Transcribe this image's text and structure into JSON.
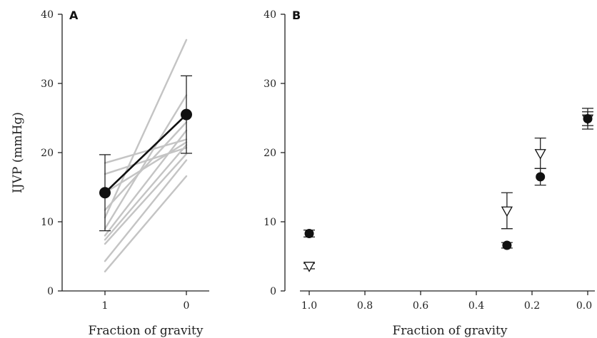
{
  "chart_data": [
    {
      "type": "line",
      "panel_label": "A",
      "xlabel": "Fraction of gravity",
      "ylabel": "IJVP (mmHg)",
      "x_categories": [
        "1",
        "0"
      ],
      "ylim": [
        0,
        40
      ],
      "y_ticks": [
        0,
        10,
        20,
        30,
        40
      ],
      "grid": false,
      "individual_series": [
        {
          "values": [
            2.8,
            16.6
          ]
        },
        {
          "values": [
            4.3,
            18.9
          ]
        },
        {
          "values": [
            6.8,
            19.8
          ]
        },
        {
          "values": [
            7.4,
            21.1
          ]
        },
        {
          "values": [
            8.0,
            23.2
          ]
        },
        {
          "values": [
            9.0,
            28.3
          ]
        },
        {
          "values": [
            10.6,
            36.3
          ]
        },
        {
          "values": [
            11.7,
            24.4
          ]
        },
        {
          "values": [
            14.2,
            21.5
          ]
        },
        {
          "values": [
            16.9,
            20.7
          ]
        },
        {
          "values": [
            18.5,
            21.9
          ]
        }
      ],
      "mean_series": {
        "values": [
          14.2,
          25.5
        ],
        "error": [
          5.5,
          5.6
        ]
      },
      "colors": {
        "individual": "#c4c4c4",
        "mean": "#111111"
      }
    },
    {
      "type": "scatter",
      "panel_label": "B",
      "xlabel": "Fraction of gravity",
      "ylabel": "",
      "xlim": [
        1.0,
        0.0
      ],
      "x_reversed": true,
      "x_ticks": [
        1.0,
        0.8,
        0.6,
        0.4,
        0.2,
        0.0
      ],
      "x_tick_labels": [
        "1.0",
        "0.8",
        "0.6",
        "0.4",
        "0.2",
        "0.0"
      ],
      "ylim": [
        0,
        40
      ],
      "y_ticks": [
        0,
        10,
        20,
        30,
        40
      ],
      "grid": false,
      "series": [
        {
          "marker": "filled-circle",
          "points": [
            {
              "x": 1.0,
              "y": 8.3,
              "err": 0.5
            },
            {
              "x": 0.29,
              "y": 6.6,
              "err": 0.4
            },
            {
              "x": 0.17,
              "y": 16.5,
              "err": 1.2
            },
            {
              "x": 0.0,
              "y": 24.9,
              "err": 1.5
            }
          ]
        },
        {
          "marker": "open-triangle-down",
          "points": [
            {
              "x": 1.0,
              "y": 3.6,
              "err": 0.4
            },
            {
              "x": 0.29,
              "y": 11.6,
              "err": 2.6
            },
            {
              "x": 0.17,
              "y": 19.9,
              "err": 2.2
            },
            {
              "x": 0.0,
              "y": 24.9,
              "err": 1.0
            }
          ]
        }
      ],
      "colors": {
        "filled": "#111111",
        "open": "#ffffff"
      }
    }
  ]
}
